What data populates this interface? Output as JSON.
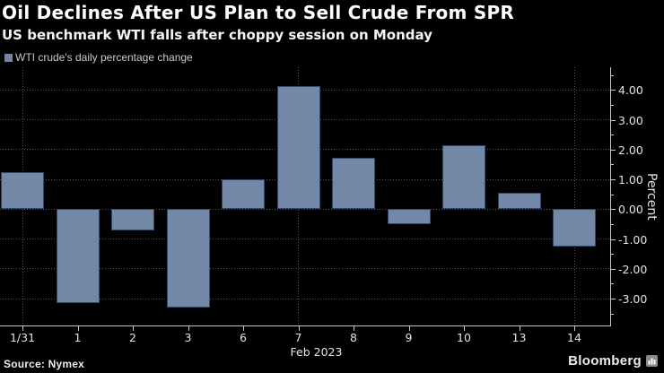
{
  "header": {
    "title": "Oil Declines After US Plan to Sell Crude From SPR",
    "subtitle": "US benchmark WTI falls after choppy session on Monday"
  },
  "legend": {
    "label": "WTI crude's daily percentage change"
  },
  "chart_data": {
    "type": "bar",
    "categories": [
      "1/31",
      "1",
      "2",
      "3",
      "6",
      "7",
      "8",
      "9",
      "10",
      "13",
      "14"
    ],
    "values": [
      1.23,
      -3.15,
      -0.7,
      -3.3,
      1.0,
      4.12,
      1.72,
      -0.5,
      2.13,
      0.55,
      -1.26
    ],
    "vertical_gridline_categories": [
      "1/31",
      "7",
      "14"
    ],
    "xlabel": "Feb 2023",
    "ylabel": "Percent",
    "ylim": [
      -3.9,
      4.76
    ],
    "y_major_ticks": [
      4,
      3,
      2,
      1,
      0,
      -1,
      -2,
      -3
    ],
    "y_tick_labels": [
      "4.00",
      "3.00",
      "2.00",
      "1.00",
      "0.00",
      "-1.00",
      "-2.00",
      "-3.00"
    ],
    "y_minor_step": 0.5,
    "grid": "dotted",
    "legend_position": "top-left",
    "bar_color": "#7388a7",
    "bar_border_color": "#33496b"
  },
  "footer": {
    "source": "Source: Nymex",
    "brand": "Bloomberg"
  }
}
